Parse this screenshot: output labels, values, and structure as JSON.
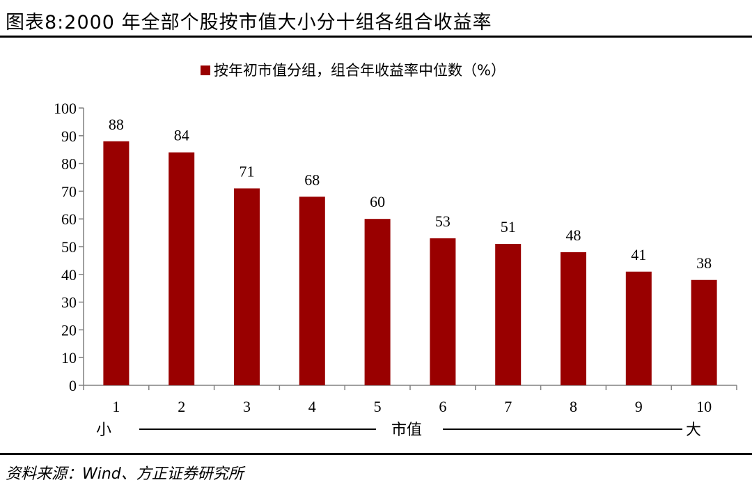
{
  "figure_title": "图表8:2000 年全部个股按市值大小分十组各组合收益率",
  "source_note": "资料来源：Wind、方正证券研究所",
  "axis_note": {
    "left": "小",
    "center": "市值",
    "right": "大"
  },
  "colors": {
    "bar": "#990000",
    "axis": "#808080",
    "rule": "#000000"
  },
  "chart_data": {
    "type": "bar",
    "title": "",
    "xlabel": "",
    "ylabel": "",
    "categories": [
      "1",
      "2",
      "3",
      "4",
      "5",
      "6",
      "7",
      "8",
      "9",
      "10"
    ],
    "series": [
      {
        "name": "按年初市值分组，组合年收益率中位数（%）",
        "values": [
          88,
          84,
          71,
          68,
          60,
          53,
          51,
          48,
          41,
          38
        ]
      }
    ],
    "ylim": [
      0,
      100
    ],
    "yticks": [
      0,
      10,
      20,
      30,
      40,
      50,
      60,
      70,
      80,
      90,
      100
    ],
    "grid": false,
    "legend_position": "top-center",
    "data_labels": true
  }
}
